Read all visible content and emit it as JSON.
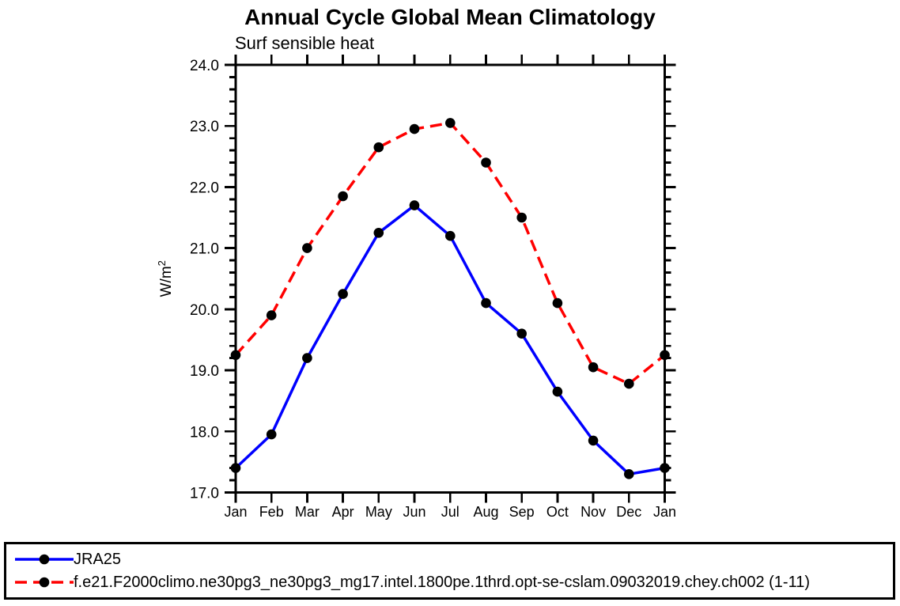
{
  "chart_data": {
    "type": "line",
    "title": "Annual Cycle Global Mean Climatology",
    "subtitle": "Surf sensible heat",
    "ylabel_base": "W/m",
    "ylabel_exponent": "2",
    "categories": [
      "Jan",
      "Feb",
      "Mar",
      "Apr",
      "May",
      "Jun",
      "Jul",
      "Aug",
      "Sep",
      "Oct",
      "Nov",
      "Dec",
      "Jan"
    ],
    "ylim": [
      17.0,
      24.0
    ],
    "ytick_interval": 1.0,
    "yminor_interval": 0.2,
    "ytick_labels": [
      "17.0",
      "18.0",
      "19.0",
      "20.0",
      "21.0",
      "22.0",
      "23.0",
      "24.0"
    ],
    "grid": false,
    "legend_position": "bottom-left-box",
    "axis_color": "#000000",
    "marker_shape": "filled-circle",
    "series": [
      {
        "name": "JRA25",
        "color": "#0000ff",
        "line_style": "solid",
        "marker_color": "#000000",
        "values": [
          17.4,
          17.95,
          19.2,
          20.25,
          21.25,
          21.7,
          21.2,
          20.1,
          19.6,
          18.65,
          17.85,
          17.3,
          17.4
        ]
      },
      {
        "name": "f.e21.F2000climo.ne30pg3_ne30pg3_mg17.intel.1800pe.1thrd.opt-se-cslam.09032019.chey.ch002 (1-11)",
        "color": "#ff0000",
        "line_style": "dashed",
        "marker_color": "#000000",
        "values": [
          19.25,
          19.9,
          21.0,
          21.85,
          22.65,
          22.95,
          23.05,
          22.4,
          21.5,
          20.1,
          19.05,
          18.78,
          19.25
        ]
      }
    ]
  }
}
